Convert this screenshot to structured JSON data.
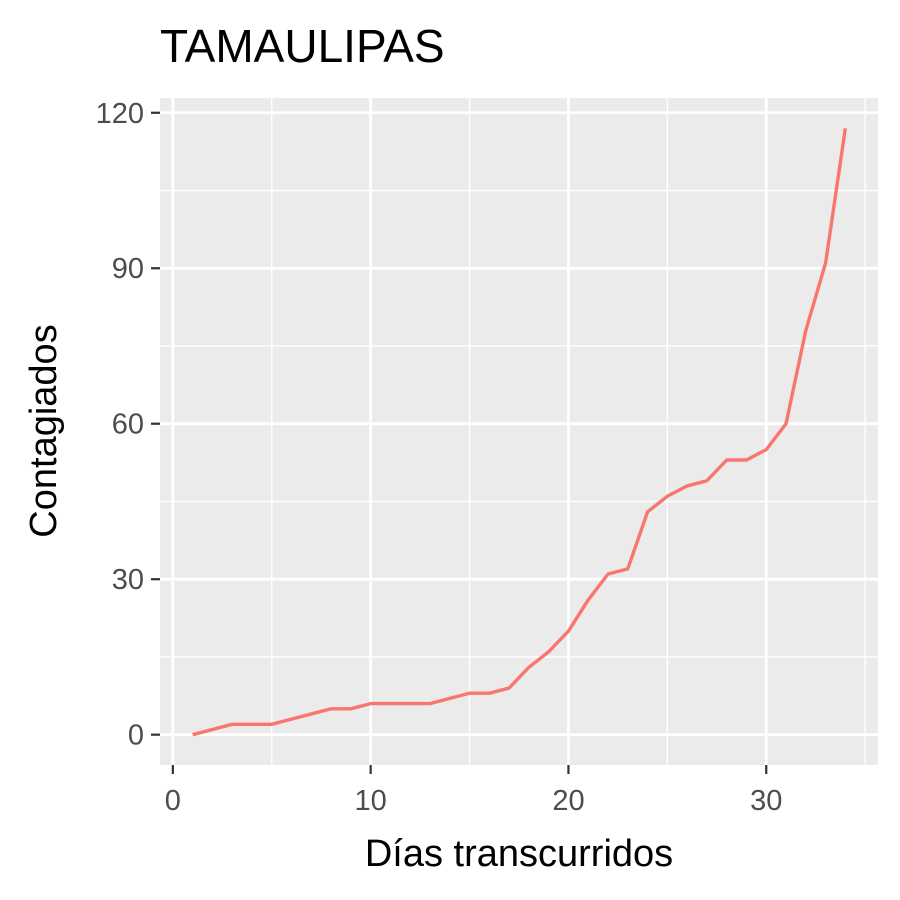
{
  "chart_data": {
    "type": "line",
    "title": "TAMAULIPAS",
    "xlabel": "Días transcurridos",
    "ylabel": "Contagiados",
    "xlim": [
      -0.65,
      35.65
    ],
    "ylim": [
      -5.85,
      122.85
    ],
    "x_ticks": [
      0,
      10,
      20,
      30
    ],
    "y_ticks": [
      0,
      30,
      60,
      90,
      120
    ],
    "grid": true,
    "legend": "none",
    "colors": {
      "line": "#F8766D",
      "panel": "#EBEBEB",
      "grid": "#FFFFFF",
      "tick_text": "#4D4D4D",
      "tick_mark": "#333333"
    },
    "series": [
      {
        "x": [
          1,
          2,
          3,
          4,
          5,
          6,
          7,
          8,
          9,
          10,
          11,
          12,
          13,
          14,
          15,
          16,
          17,
          18,
          19,
          20,
          21,
          22,
          23,
          24,
          25,
          26,
          27,
          28,
          29,
          30,
          31,
          32,
          33,
          34
        ],
        "values": [
          0,
          1,
          2,
          2,
          2,
          3,
          4,
          5,
          5,
          6,
          6,
          6,
          6,
          7,
          8,
          8,
          9,
          13,
          16,
          20,
          26,
          31,
          32,
          43,
          46,
          48,
          49,
          53,
          53,
          55,
          60,
          78,
          91,
          117
        ]
      }
    ]
  }
}
